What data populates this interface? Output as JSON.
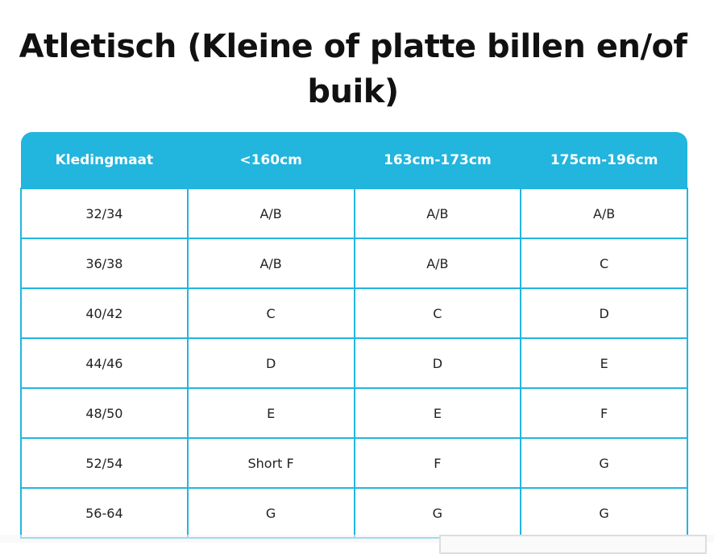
{
  "title": "Atletisch (Kleine of platte billen en/of buik)",
  "table": {
    "headers": [
      "Kledingmaat",
      "<160cm",
      "163cm-173cm",
      "175cm-196cm"
    ],
    "rows": [
      [
        "32/34",
        "A/B",
        "A/B",
        "A/B"
      ],
      [
        "36/38",
        "A/B",
        "A/B",
        "C"
      ],
      [
        "40/42",
        "C",
        "C",
        "D"
      ],
      [
        "44/46",
        "D",
        "D",
        "E"
      ],
      [
        "48/50",
        "E",
        "E",
        "F"
      ],
      [
        "52/54",
        "Short F",
        "F",
        "G"
      ],
      [
        "56-64",
        "G",
        "G",
        "G"
      ]
    ]
  },
  "colors": {
    "header_bg": "#22b5de",
    "border": "#22b5de"
  }
}
